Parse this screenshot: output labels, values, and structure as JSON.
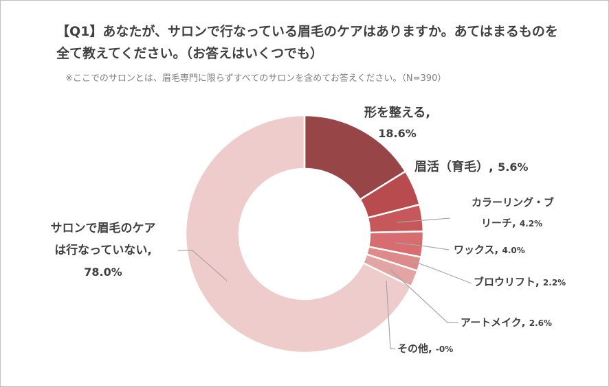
{
  "page": {
    "title": "【Q1】あなたが、サロンで行なっている眉毛のケアはありますか。あてはまるものを全て教えてください。（お答えはいくつでも）",
    "subtitle": "※ここでのサロンとは、眉毛専門に限らずすべてのサロンを含めてお答えください。（N=390）"
  },
  "chart_data": {
    "type": "pie",
    "style": "donut",
    "title": "【Q1】あなたが、サロンで行なっている眉毛のケアはありますか。あてはまるものを全て教えてください。（お答えはいくつでも）",
    "subtitle": "※ここでのサロンとは、眉毛専門に限らずすべてのサロンを含めてお答えください。（N=390）",
    "unit": "%",
    "start": "12 o'clock, clockwise",
    "slices": [
      {
        "label": "形を整える",
        "value": 18.6,
        "value_text": "18.6%",
        "color": "#974546"
      },
      {
        "label": "眉活（育毛）",
        "value": 5.6,
        "value_text": "5.6%",
        "color": "#b84b4e"
      },
      {
        "label": "カラーリング・ブリーチ",
        "value": 4.2,
        "value_text": "4.2%",
        "color": "#c6575a"
      },
      {
        "label": "ワックス",
        "value": 4.0,
        "value_text": "4.0%",
        "color": "#d76d70"
      },
      {
        "label": "ブロウリフト",
        "value": 2.2,
        "value_text": "2.2%",
        "color": "#de8a8b"
      },
      {
        "label": "アートメイク",
        "value": 2.6,
        "value_text": "2.6%",
        "color": "#e3a4a4"
      },
      {
        "label": "その他",
        "value": 0,
        "value_text": "-0%",
        "color": "#e8b9b9"
      },
      {
        "label": "サロンで眉毛のケアは行なっていない",
        "value": 78.0,
        "value_text": "78.0%",
        "color": "#efcccc"
      }
    ]
  }
}
